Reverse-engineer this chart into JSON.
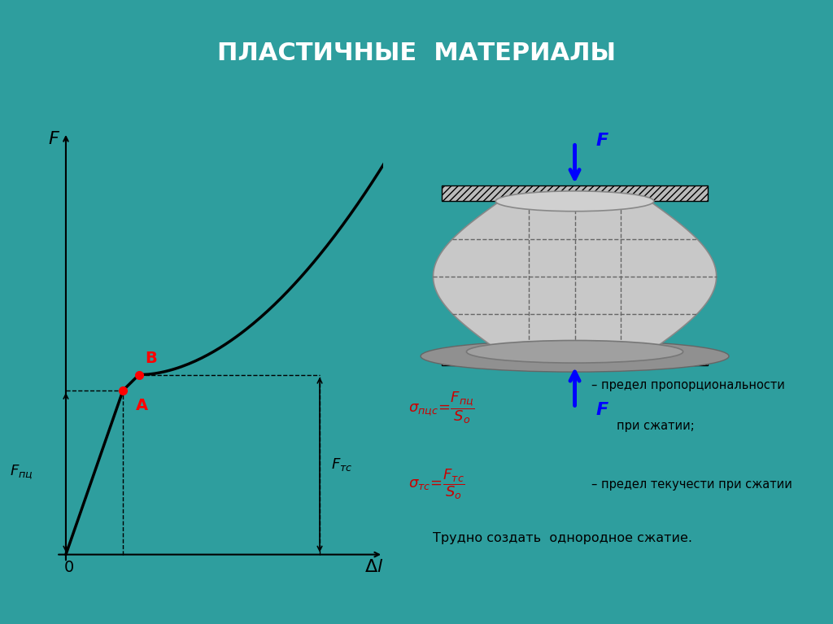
{
  "bg_color": "#2E9E9E",
  "panel_color": "#F2F2F2",
  "title": "ПЛАСТИЧНЫЕ  МАТЕРИАЛЫ",
  "title_color": "#FFFFFF",
  "title_fontsize": 22,
  "curve_color": "#000000",
  "axis_color": "#000000",
  "point_A_color": "#FF0000",
  "point_B_color": "#FF0000",
  "label_A": "A",
  "label_B": "B",
  "label_F": "F",
  "label_Fpi": "$F_{\\\\пц}$",
  "label_Ftc": "$F_{\\\\тс}$",
  "label_delta_l": "$\\\\Delta l$",
  "label_0": "0",
  "dashed_line_color": "#000000",
  "arrow_color": "#0000FF",
  "formula_color": "#CC0000",
  "text_color": "#000000",
  "note": "Трудно создать  однородное сжатие."
}
